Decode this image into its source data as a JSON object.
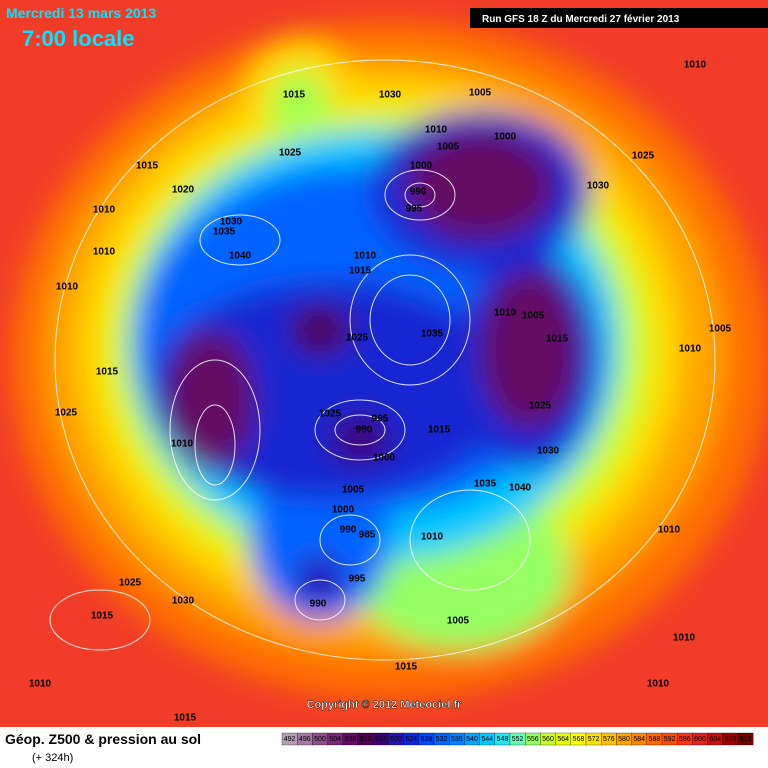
{
  "header": {
    "date": "Mercredi 13 mars 2013",
    "time": "7:00 locale",
    "run": "Run GFS 18 Z du Mercredi 27 février 2013"
  },
  "isobar_labels": [
    "1015",
    "1025",
    "1030",
    "1005",
    "1010",
    "1000",
    "1005",
    "1000",
    "990",
    "995",
    "1030",
    "1025",
    "1010",
    "1015",
    "1020",
    "1010",
    "1030",
    "1035",
    "1040",
    "1010",
    "1010",
    "1010",
    "1015",
    "1025",
    "1035",
    "1010",
    "1005",
    "1015",
    "1025",
    "1010",
    "1005",
    "1015",
    "1025",
    "1025",
    "995",
    "990",
    "1015",
    "1000",
    "1030",
    "1035",
    "1040",
    "1005",
    "1000",
    "990",
    "985",
    "1010",
    "995",
    "990",
    "1005",
    "1010",
    "1025",
    "1015",
    "1030",
    "1010",
    "1010",
    "1015",
    "1010",
    "1015",
    "1010"
  ],
  "copyright": "Copyright © 2012 Meteociel.fr",
  "footer": {
    "title": "Géop. Z500 & pression au sol",
    "lead": "(+ 324h)"
  },
  "scale": {
    "ticks": [
      492,
      496,
      500,
      504,
      508,
      512,
      516,
      520,
      524,
      528,
      532,
      536,
      540,
      544,
      548,
      552,
      556,
      560,
      564,
      568,
      572,
      576,
      580,
      584,
      588,
      592,
      596,
      600,
      604,
      608,
      612
    ],
    "colors": [
      "#b4a0b4",
      "#a078a0",
      "#8c508c",
      "#782878",
      "#640a64",
      "#500050",
      "#3c0078",
      "#2814b4",
      "#0a28e6",
      "#0046ff",
      "#0064ff",
      "#0082ff",
      "#00a5ff",
      "#00c8ff",
      "#28e6f0",
      "#64ffb4",
      "#96ff64",
      "#c8ff28",
      "#e6ff00",
      "#ffff00",
      "#ffe100",
      "#ffc300",
      "#ffa500",
      "#ff8700",
      "#ff6900",
      "#ff4b00",
      "#ff3214",
      "#e61e1e",
      "#c80f0f",
      "#a00000",
      "#780000"
    ]
  }
}
